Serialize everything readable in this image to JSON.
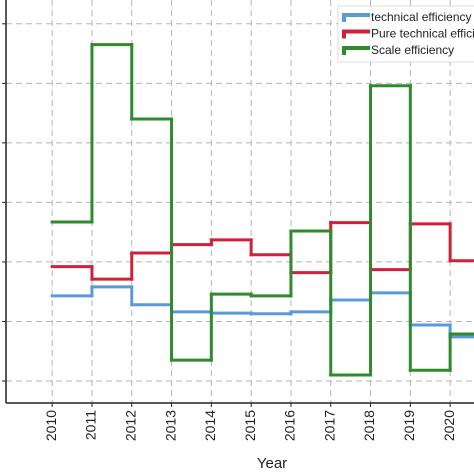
{
  "chart_data": {
    "type": "step",
    "x_label": "Year",
    "x": [
      2010,
      2011,
      2012,
      2013,
      2014,
      2015,
      2016,
      2017,
      2018,
      2019,
      2020
    ],
    "xlim": [
      2008.84,
      2020.6
    ],
    "xticks": [
      2010,
      2011,
      2012,
      2013,
      2014,
      2015,
      2016,
      2017,
      2018,
      2019,
      2020
    ],
    "ylim": [
      0.63,
      7.4
    ],
    "yticks": [
      1,
      2,
      3,
      4,
      5,
      6,
      7
    ],
    "grid": true,
    "legend": "upper right",
    "series": [
      {
        "name": "technical efficiency",
        "color": "#5b9bd5",
        "values": [
          2.43,
          2.58,
          2.28,
          2.16,
          2.14,
          2.13,
          2.16,
          2.36,
          2.48,
          1.94,
          1.74
        ]
      },
      {
        "name": "Pure technical efficiency",
        "color": "#d0213a",
        "values": [
          2.92,
          2.71,
          3.15,
          3.29,
          3.37,
          3.12,
          2.82,
          3.66,
          2.87,
          3.64,
          3.02
        ]
      },
      {
        "name": "Scale efficiency",
        "color": "#2e8b2e",
        "values": [
          3.67,
          6.65,
          5.4,
          1.35,
          2.46,
          2.43,
          3.52,
          1.1,
          5.96,
          1.18,
          1.79
        ]
      }
    ]
  }
}
